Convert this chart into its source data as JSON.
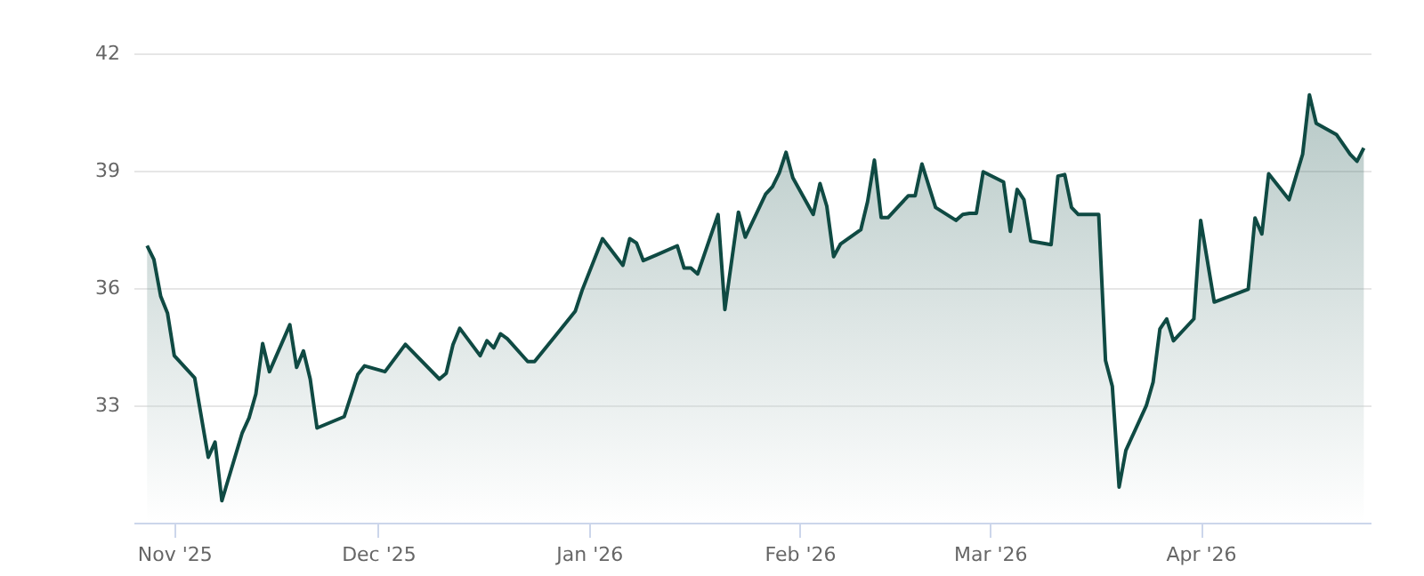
{
  "chart_data": {
    "type": "area",
    "x": [
      "2025-10-28",
      "2025-10-29",
      "2025-10-30",
      "2025-10-31",
      "2025-11-01",
      "2025-11-04",
      "2025-11-06",
      "2025-11-07",
      "2025-11-08",
      "2025-11-11",
      "2025-11-12",
      "2025-11-13",
      "2025-11-14",
      "2025-11-15",
      "2025-11-18",
      "2025-11-19",
      "2025-11-20",
      "2025-11-21",
      "2025-11-22",
      "2025-11-26",
      "2025-11-28",
      "2025-11-29",
      "2025-12-02",
      "2025-12-05",
      "2025-12-10",
      "2025-12-11",
      "2025-12-12",
      "2025-12-13",
      "2025-12-16",
      "2025-12-17",
      "2025-12-18",
      "2025-12-19",
      "2025-12-20",
      "2025-12-23",
      "2025-12-24",
      "2025-12-27",
      "2025-12-30",
      "2025-12-31",
      "2026-01-03",
      "2026-01-06",
      "2026-01-07",
      "2026-01-08",
      "2026-01-09",
      "2026-01-11",
      "2026-01-14",
      "2026-01-15",
      "2026-01-16",
      "2026-01-17",
      "2026-01-20",
      "2026-01-21",
      "2026-01-23",
      "2026-01-24",
      "2026-01-27",
      "2026-01-28",
      "2026-01-29",
      "2026-01-30",
      "2026-01-31",
      "2026-02-03",
      "2026-02-04",
      "2026-02-05",
      "2026-02-06",
      "2026-02-07",
      "2026-02-10",
      "2026-02-11",
      "2026-02-12",
      "2026-02-13",
      "2026-02-14",
      "2026-02-17",
      "2026-02-18",
      "2026-02-19",
      "2026-02-21",
      "2026-02-24",
      "2026-02-25",
      "2026-02-26",
      "2026-02-27",
      "2026-02-28",
      "2026-03-03",
      "2026-03-04",
      "2026-03-05",
      "2026-03-06",
      "2026-03-07",
      "2026-03-10",
      "2026-03-11",
      "2026-03-12",
      "2026-03-13",
      "2026-03-14",
      "2026-03-17",
      "2026-03-18",
      "2026-03-19",
      "2026-03-20",
      "2026-03-21",
      "2026-03-24",
      "2026-03-25",
      "2026-03-26",
      "2026-03-27",
      "2026-03-28",
      "2026-03-31",
      "2026-04-01",
      "2026-04-03",
      "2026-04-08",
      "2026-04-09",
      "2026-04-10",
      "2026-04-11",
      "2026-04-14",
      "2026-04-16",
      "2026-04-17",
      "2026-04-18",
      "2026-04-21",
      "2026-04-23",
      "2026-04-24",
      "2026-04-25"
    ],
    "series": [
      {
        "color": "#0f4a43",
        "values": [
          37.08,
          36.73,
          35.79,
          35.36,
          34.27,
          33.7,
          31.67,
          32.06,
          30.56,
          32.3,
          32.68,
          33.29,
          34.58,
          33.86,
          35.06,
          33.97,
          34.39,
          33.67,
          32.42,
          32.71,
          33.79,
          34.01,
          33.86,
          34.56,
          33.67,
          33.82,
          34.55,
          34.97,
          34.27,
          34.65,
          34.47,
          34.83,
          34.7,
          34.12,
          34.12,
          34.76,
          35.41,
          35.94,
          37.26,
          36.58,
          37.26,
          37.15,
          36.7,
          36.85,
          37.08,
          36.51,
          36.51,
          36.36,
          37.88,
          35.45,
          37.94,
          37.3,
          38.4,
          38.59,
          38.94,
          39.47,
          38.82,
          37.88,
          38.67,
          38.09,
          36.8,
          37.12,
          37.49,
          38.21,
          39.27,
          37.8,
          37.8,
          38.36,
          38.36,
          39.17,
          38.06,
          37.73,
          37.88,
          37.91,
          37.91,
          38.97,
          38.71,
          37.45,
          38.52,
          38.26,
          37.2,
          37.11,
          38.86,
          38.9,
          38.06,
          37.88,
          37.88,
          34.15,
          33.49,
          30.91,
          31.85,
          32.99,
          33.59,
          34.95,
          35.21,
          34.65,
          35.21,
          37.73,
          35.64,
          35.97,
          37.79,
          37.38,
          38.92,
          38.26,
          39.42,
          40.94,
          40.21,
          39.92,
          39.42,
          39.24,
          39.58
        ]
      }
    ],
    "xlim": [
      "2025-10-26",
      "2026-04-26"
    ],
    "xticks": [
      {
        "value": "2025-11-01",
        "label": "Nov '25"
      },
      {
        "value": "2025-12-01",
        "label": "Dec '25"
      },
      {
        "value": "2026-01-01",
        "label": "Jan '26"
      },
      {
        "value": "2026-02-01",
        "label": "Feb '26"
      },
      {
        "value": "2026-03-01",
        "label": "Mar '26"
      },
      {
        "value": "2026-04-01",
        "label": "Apr '26"
      }
    ],
    "ylim": [
      30,
      42
    ],
    "yticks": [
      33,
      36,
      39,
      42
    ],
    "grid": "y",
    "legend": false,
    "line_style": "solid",
    "marker": "none"
  }
}
